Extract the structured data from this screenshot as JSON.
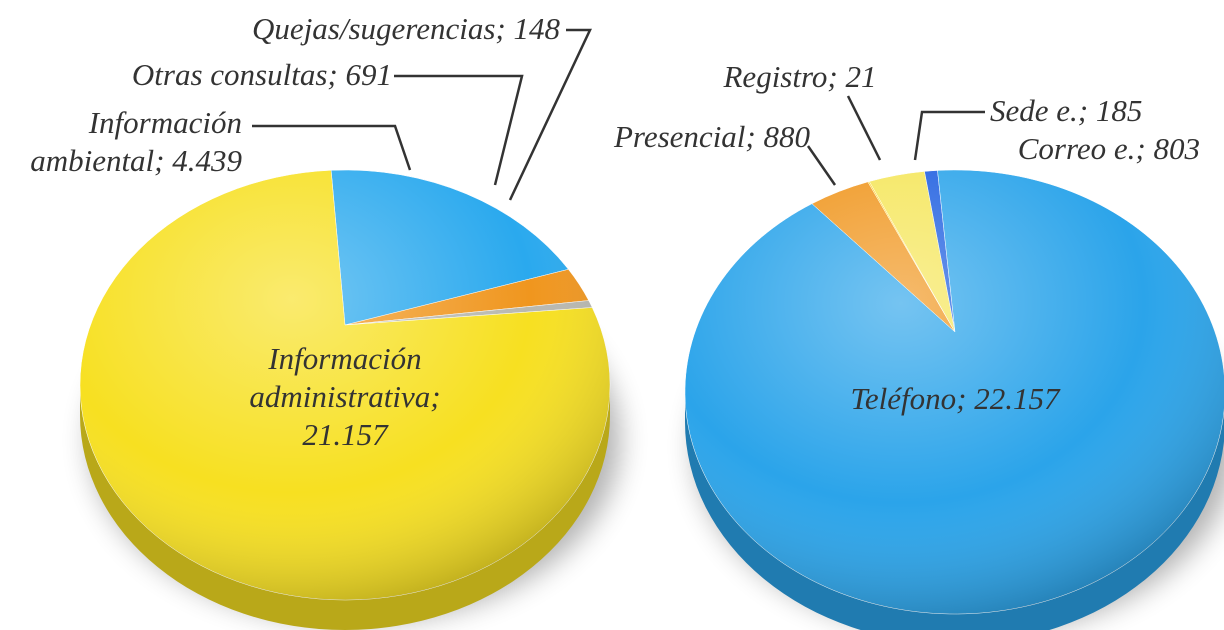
{
  "chart_data": [
    {
      "type": "pie",
      "labels": [
        "Información ambiental; 4.439",
        "Otras consultas; 691",
        "Quejas/sugerencias; 148",
        "Información administrativa; 21.157"
      ],
      "values": [
        4439,
        691,
        148,
        21157
      ],
      "colors": [
        "#2aa9ee",
        "#f0961e",
        "#b8b8b0",
        "#f7e021"
      ]
    },
    {
      "type": "pie",
      "labels": [
        "Presencial; 880",
        "Registro; 21",
        "Correo e.; 803",
        "Sede e.; 185",
        "Teléfono; 22.157"
      ],
      "values": [
        880,
        21,
        803,
        185,
        22157
      ],
      "colors": [
        "#f0961e",
        "#ffd21f",
        "#f5e65a",
        "#1f5fe0",
        "#2ba4ea"
      ]
    }
  ]
}
